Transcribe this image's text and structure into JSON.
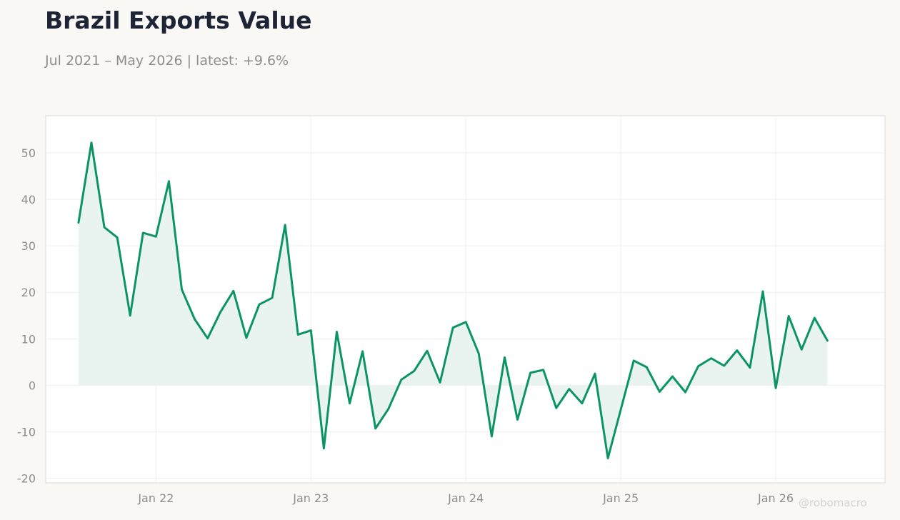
{
  "title": "Brazil Exports Value",
  "subtitle": "Jul 2021 – May 2026 | latest: +9.6%",
  "watermark": "@robomacro",
  "colors": {
    "line": "#0c9467",
    "fill": "#e9f3ef",
    "plot_bg": "#ffffff",
    "page_bg": "#f9f8f5",
    "grid": "#efeeeb",
    "frame": "#dcdad4"
  },
  "chart_data": {
    "type": "area",
    "x_start": "2021-07",
    "x_end": "2026-05",
    "x_ticks": [
      {
        "label": "Jan 22",
        "date": "2022-01"
      },
      {
        "label": "Jan 23",
        "date": "2023-01"
      },
      {
        "label": "Jan 24",
        "date": "2024-01"
      },
      {
        "label": "Jan 25",
        "date": "2025-01"
      },
      {
        "label": "Jan 26",
        "date": "2026-01"
      }
    ],
    "y_ticks": [
      -20,
      -10,
      0,
      10,
      20,
      30,
      40,
      50
    ],
    "ylim": [
      -21,
      58
    ],
    "xlim": [
      "2021-04-15",
      "2026-09-15"
    ],
    "grid": true,
    "xlabel": "",
    "ylabel": "",
    "series": [
      {
        "dates": [
          "2021-07",
          "2021-08",
          "2021-09",
          "2021-10",
          "2021-11",
          "2021-12",
          "2022-01",
          "2022-02",
          "2022-03",
          "2022-04",
          "2022-05",
          "2022-06",
          "2022-07",
          "2022-08",
          "2022-09",
          "2022-10",
          "2022-11",
          "2022-12",
          "2023-01",
          "2023-02",
          "2023-03",
          "2023-04",
          "2023-05",
          "2023-06",
          "2023-07",
          "2023-08",
          "2023-09",
          "2023-10",
          "2023-11",
          "2023-12",
          "2024-01",
          "2024-02",
          "2024-03",
          "2024-04",
          "2024-05",
          "2024-06",
          "2024-07",
          "2024-08",
          "2024-09",
          "2024-10",
          "2024-11",
          "2024-12",
          "2025-01",
          "2025-02",
          "2025-03",
          "2025-04",
          "2025-05",
          "2025-06",
          "2025-07",
          "2025-08",
          "2025-09",
          "2025-10",
          "2025-11",
          "2025-12",
          "2026-01",
          "2026-02",
          "2026-03",
          "2026-04",
          "2026-05"
        ],
        "values": [
          35.0,
          52.2,
          34.0,
          31.8,
          15.0,
          32.8,
          32.0,
          43.9,
          20.6,
          14.2,
          10.1,
          15.8,
          20.3,
          10.2,
          17.4,
          18.8,
          34.5,
          10.9,
          11.8,
          -13.6,
          11.5,
          -3.9,
          7.3,
          -9.3,
          -5.1,
          1.2,
          3.1,
          7.4,
          0.6,
          12.4,
          13.6,
          6.8,
          -11.0,
          6.0,
          -7.4,
          2.7,
          3.3,
          -4.9,
          -0.8,
          -3.9,
          2.5,
          -15.7,
          -5.2,
          5.3,
          3.9,
          -1.4,
          1.9,
          -1.5,
          4.1,
          5.8,
          4.2,
          7.5,
          3.8,
          20.2,
          -0.6,
          14.9,
          7.7,
          14.5,
          9.6
        ]
      }
    ]
  }
}
